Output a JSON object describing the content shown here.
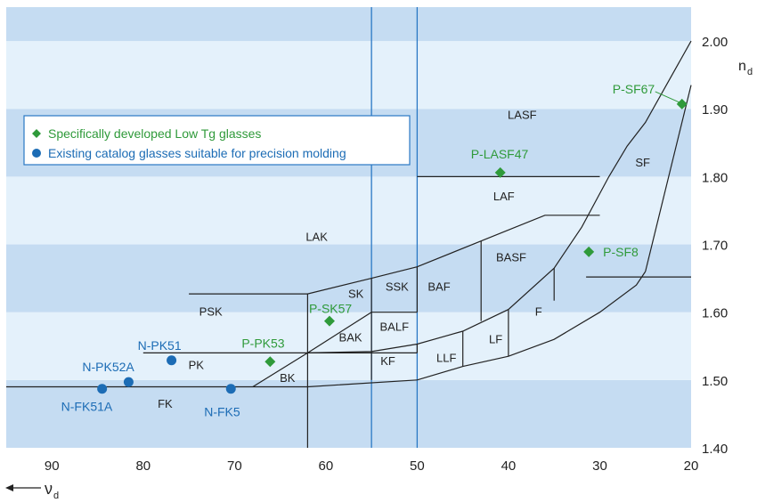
{
  "chart_data": {
    "type": "scatter",
    "x_axis": {
      "label_main": "ν",
      "label_sub": "d",
      "range": [
        95,
        20
      ],
      "reversed": true,
      "ticks": [
        90,
        80,
        70,
        60,
        50,
        40,
        30,
        20
      ],
      "position": "bottom"
    },
    "y_axis": {
      "label_main": "n",
      "label_sub": "d",
      "range": [
        1.4,
        2.05
      ],
      "ticks": [
        "1.40",
        "1.50",
        "1.60",
        "1.70",
        "1.80",
        "1.90",
        "2.00"
      ],
      "position": "right"
    },
    "background": {
      "alternating_bands": true,
      "band_step": 0.1,
      "band_colors": [
        "#c5dcf2",
        "#e4f1fb"
      ]
    },
    "legend": {
      "placement": "top-left",
      "entries": [
        {
          "label": "Specifically developed Low Tg glasses",
          "marker": "diamond",
          "color": "#2f9a3a"
        },
        {
          "label": "Existing catalog glasses suitable for precision molding",
          "marker": "circle",
          "color": "#1c6cb5"
        }
      ]
    },
    "series": [
      {
        "name": "Specifically developed Low Tg glasses",
        "marker": "diamond",
        "color": "#2f9a3a",
        "points": [
          {
            "label": "P-SF67",
            "x": 21.0,
            "y": 1.907
          },
          {
            "label": "P-LASF47",
            "x": 40.9,
            "y": 1.806
          },
          {
            "label": "P-SF8",
            "x": 31.2,
            "y": 1.689
          },
          {
            "label": "P-SK57",
            "x": 59.6,
            "y": 1.587
          },
          {
            "label": "P-PK53",
            "x": 66.1,
            "y": 1.527
          }
        ]
      },
      {
        "name": "Existing catalog glasses suitable for precision molding",
        "marker": "circle",
        "color": "#1c6cb5",
        "points": [
          {
            "label": "N-PK51",
            "x": 76.9,
            "y": 1.529
          },
          {
            "label": "N-PK52A",
            "x": 81.6,
            "y": 1.497
          },
          {
            "label": "N-FK51A",
            "x": 84.5,
            "y": 1.487
          },
          {
            "label": "N-FK5",
            "x": 70.4,
            "y": 1.487
          }
        ]
      }
    ],
    "region_labels": [
      "LASF",
      "LAF",
      "LAK",
      "SF",
      "BASF",
      "BAF",
      "SSK",
      "SK",
      "PSK",
      "BALF",
      "BAK",
      "KF",
      "LLF",
      "LF",
      "F",
      "PK",
      "BK",
      "FK"
    ],
    "reference_lines": [
      {
        "type": "vertical",
        "x": 50,
        "color": "#2a78c4"
      },
      {
        "type": "vertical",
        "x": 55,
        "color": "#2a78c4"
      }
    ],
    "boundary_lines": [
      {
        "points": [
          [
            95,
            1.49
          ],
          [
            68,
            1.49
          ],
          [
            62,
            1.49
          ],
          [
            50,
            1.5
          ]
        ]
      },
      {
        "points": [
          [
            80,
            1.54
          ],
          [
            62,
            1.54
          ],
          [
            50,
            1.54
          ]
        ]
      },
      {
        "points": [
          [
            75,
            1.627
          ],
          [
            62,
            1.627
          ],
          [
            55,
            1.65
          ],
          [
            50,
            1.667
          ],
          [
            43,
            1.705
          ],
          [
            36,
            1.743
          ],
          [
            30,
            1.743
          ]
        ]
      },
      {
        "points": [
          [
            68,
            1.49
          ],
          [
            62,
            1.54
          ],
          [
            55,
            1.6
          ],
          [
            50,
            1.6
          ]
        ]
      },
      {
        "points": [
          [
            62,
            1.4
          ],
          [
            62,
            1.627
          ]
        ]
      },
      {
        "points": [
          [
            55,
            1.54
          ],
          [
            55,
            1.65
          ]
        ]
      },
      {
        "points": [
          [
            50,
            1.6
          ],
          [
            50,
            1.667
          ]
        ]
      },
      {
        "points": [
          [
            50,
            1.8
          ],
          [
            30,
            1.8
          ]
        ]
      },
      {
        "points": [
          [
            43,
            1.587
          ],
          [
            43,
            1.705
          ]
        ]
      },
      {
        "points": [
          [
            35,
            1.617
          ],
          [
            35,
            1.665
          ]
        ]
      },
      {
        "points": [
          [
            31.5,
            1.652
          ],
          [
            20,
            1.652
          ]
        ]
      },
      {
        "points": [
          [
            50,
            1.5
          ],
          [
            45,
            1.52
          ],
          [
            40,
            1.535
          ],
          [
            35,
            1.56
          ],
          [
            30,
            1.6
          ],
          [
            26,
            1.64
          ],
          [
            25,
            1.66
          ]
        ]
      },
      {
        "points": [
          [
            62,
            1.54
          ],
          [
            55,
            1.542
          ],
          [
            50,
            1.553
          ],
          [
            45,
            1.572
          ],
          [
            40,
            1.604
          ],
          [
            35,
            1.665
          ],
          [
            32,
            1.725
          ],
          [
            29,
            1.8
          ],
          [
            27,
            1.845
          ],
          [
            25,
            1.88
          ],
          [
            20,
            2.0
          ]
        ]
      },
      {
        "points": [
          [
            25,
            1.66
          ],
          [
            20,
            1.935
          ]
        ]
      },
      {
        "points": [
          [
            55,
            1.54
          ],
          [
            55,
            1.5
          ]
        ]
      },
      {
        "points": [
          [
            50,
            1.553
          ],
          [
            50,
            1.54
          ]
        ]
      },
      {
        "points": [
          [
            45,
            1.52
          ],
          [
            45,
            1.572
          ]
        ]
      },
      {
        "points": [
          [
            40,
            1.535
          ],
          [
            40,
            1.604
          ]
        ]
      }
    ]
  }
}
